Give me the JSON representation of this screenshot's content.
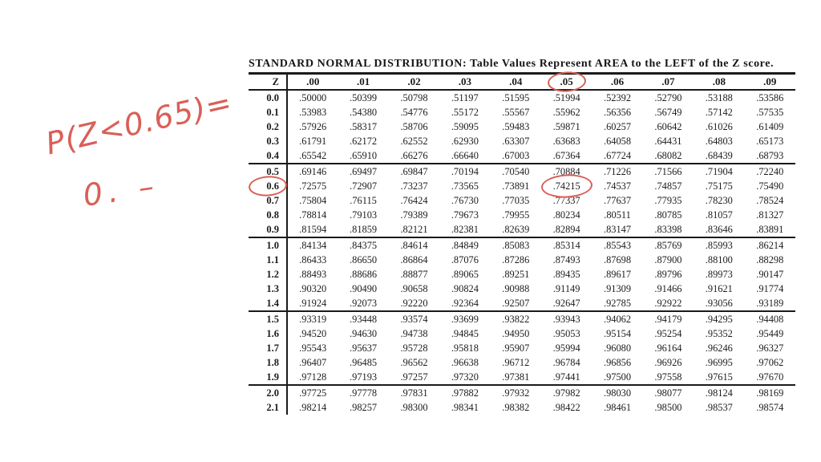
{
  "annotation_color": "#d95f57",
  "title": "STANDARD NORMAL DISTRIBUTION: Table Values Represent AREA to the LEFT of the Z score.",
  "handwriting": {
    "line1": "P(Z<0.65)=",
    "line2": "0. –"
  },
  "table": {
    "header": [
      "Z",
      ".00",
      ".01",
      ".02",
      ".03",
      ".04",
      ".05",
      ".06",
      ".07",
      ".08",
      ".09"
    ],
    "group_every": 5,
    "rows": [
      [
        "0.0",
        ".50000",
        ".50399",
        ".50798",
        ".51197",
        ".51595",
        ".51994",
        ".52392",
        ".52790",
        ".53188",
        ".53586"
      ],
      [
        "0.1",
        ".53983",
        ".54380",
        ".54776",
        ".55172",
        ".55567",
        ".55962",
        ".56356",
        ".56749",
        ".57142",
        ".57535"
      ],
      [
        "0.2",
        ".57926",
        ".58317",
        ".58706",
        ".59095",
        ".59483",
        ".59871",
        ".60257",
        ".60642",
        ".61026",
        ".61409"
      ],
      [
        "0.3",
        ".61791",
        ".62172",
        ".62552",
        ".62930",
        ".63307",
        ".63683",
        ".64058",
        ".64431",
        ".64803",
        ".65173"
      ],
      [
        "0.4",
        ".65542",
        ".65910",
        ".66276",
        ".66640",
        ".67003",
        ".67364",
        ".67724",
        ".68082",
        ".68439",
        ".68793"
      ],
      [
        "0.5",
        ".69146",
        ".69497",
        ".69847",
        ".70194",
        ".70540",
        ".70884",
        ".71226",
        ".71566",
        ".71904",
        ".72240"
      ],
      [
        "0.6",
        ".72575",
        ".72907",
        ".73237",
        ".73565",
        ".73891",
        ".74215",
        ".74537",
        ".74857",
        ".75175",
        ".75490"
      ],
      [
        "0.7",
        ".75804",
        ".76115",
        ".76424",
        ".76730",
        ".77035",
        ".77337",
        ".77637",
        ".77935",
        ".78230",
        ".78524"
      ],
      [
        "0.8",
        ".78814",
        ".79103",
        ".79389",
        ".79673",
        ".79955",
        ".80234",
        ".80511",
        ".80785",
        ".81057",
        ".81327"
      ],
      [
        "0.9",
        ".81594",
        ".81859",
        ".82121",
        ".82381",
        ".82639",
        ".82894",
        ".83147",
        ".83398",
        ".83646",
        ".83891"
      ],
      [
        "1.0",
        ".84134",
        ".84375",
        ".84614",
        ".84849",
        ".85083",
        ".85314",
        ".85543",
        ".85769",
        ".85993",
        ".86214"
      ],
      [
        "1.1",
        ".86433",
        ".86650",
        ".86864",
        ".87076",
        ".87286",
        ".87493",
        ".87698",
        ".87900",
        ".88100",
        ".88298"
      ],
      [
        "1.2",
        ".88493",
        ".88686",
        ".88877",
        ".89065",
        ".89251",
        ".89435",
        ".89617",
        ".89796",
        ".89973",
        ".90147"
      ],
      [
        "1.3",
        ".90320",
        ".90490",
        ".90658",
        ".90824",
        ".90988",
        ".91149",
        ".91309",
        ".91466",
        ".91621",
        ".91774"
      ],
      [
        "1.4",
        ".91924",
        ".92073",
        ".92220",
        ".92364",
        ".92507",
        ".92647",
        ".92785",
        ".92922",
        ".93056",
        ".93189"
      ],
      [
        "1.5",
        ".93319",
        ".93448",
        ".93574",
        ".93699",
        ".93822",
        ".93943",
        ".94062",
        ".94179",
        ".94295",
        ".94408"
      ],
      [
        "1.6",
        ".94520",
        ".94630",
        ".94738",
        ".94845",
        ".94950",
        ".95053",
        ".95154",
        ".95254",
        ".95352",
        ".95449"
      ],
      [
        "1.7",
        ".95543",
        ".95637",
        ".95728",
        ".95818",
        ".95907",
        ".95994",
        ".96080",
        ".96164",
        ".96246",
        ".96327"
      ],
      [
        "1.8",
        ".96407",
        ".96485",
        ".96562",
        ".96638",
        ".96712",
        ".96784",
        ".96856",
        ".96926",
        ".96995",
        ".97062"
      ],
      [
        "1.9",
        ".97128",
        ".97193",
        ".97257",
        ".97320",
        ".97381",
        ".97441",
        ".97500",
        ".97558",
        ".97615",
        ".97670"
      ],
      [
        "2.0",
        ".97725",
        ".97778",
        ".97831",
        ".97882",
        ".97932",
        ".97982",
        ".98030",
        ".98077",
        ".98124",
        ".98169"
      ],
      [
        "2.1",
        ".98214",
        ".98257",
        ".98300",
        ".98341",
        ".98382",
        ".98422",
        ".98461",
        ".98500",
        ".98537",
        ".98574"
      ]
    ],
    "circled": [
      {
        "kind": "header-cell",
        "col": 6,
        "label": ".05"
      },
      {
        "kind": "row-label",
        "row": 6,
        "col": 0,
        "label": "0.6"
      },
      {
        "kind": "data-cell",
        "row": 6,
        "col": 6,
        "label": ".74215"
      }
    ]
  }
}
